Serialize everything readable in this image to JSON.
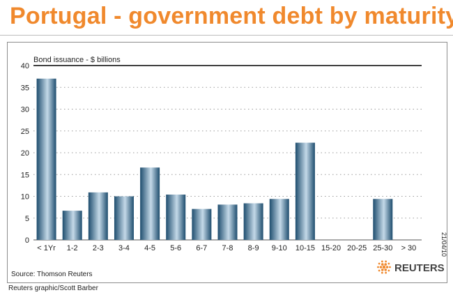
{
  "header": {
    "title": "Portugal - government debt by maturity"
  },
  "footer": {
    "credit": "Reuters graphic/Scott Barber"
  },
  "side_date": "21/04/10",
  "source": "Source: Thomson Reuters",
  "logo": {
    "name": "reuters-logo",
    "text": "REUTERS",
    "color": "#f0892d"
  },
  "colors": {
    "accent": "#f0892d",
    "bar_dark": "#1e4d6e",
    "bar_light": "#c4d9e8",
    "grid": "#9a9a9a"
  },
  "chart_data": {
    "type": "bar",
    "title": "",
    "ylabel": "Bond issuance - $ billions",
    "xlabel": "",
    "ylim": [
      0,
      40
    ],
    "yticks": [
      0,
      5,
      10,
      15,
      20,
      25,
      30,
      35,
      40
    ],
    "grid": "horizontal-dotted",
    "categories": [
      "< 1Yr",
      "1-2",
      "2-3",
      "3-4",
      "4-5",
      "5-6",
      "6-7",
      "7-8",
      "8-9",
      "9-10",
      "10-15",
      "15-20",
      "20-25",
      "25-30",
      "> 30"
    ],
    "values": [
      37,
      6.7,
      10.9,
      10,
      16.6,
      10.4,
      7.1,
      8.1,
      8.4,
      9.4,
      22.3,
      0,
      0,
      9.4,
      0
    ]
  }
}
